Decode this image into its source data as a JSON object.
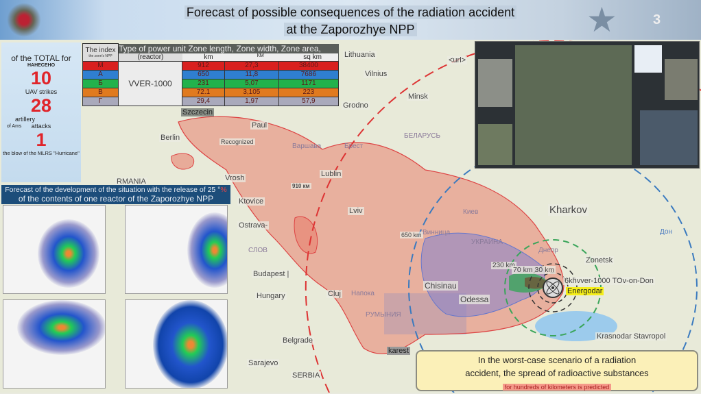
{
  "header": {
    "title_line1": "Forecast of possible consequences of the radiation accident",
    "title_line2": "at the Zaporozhye NPP",
    "page_number": "3"
  },
  "stats": {
    "heading": "of the TOTAL for",
    "sub": "НАНЕСЕНО",
    "uav_count": "10",
    "uav_label": "UAV strikes",
    "artillery_count": "28",
    "artillery_label1": "artillery",
    "artillery_label2": "attacks",
    "artillery_note": "of Ams",
    "mlrs_count": "1",
    "mlrs_label": "the blow of the MLRS \"Hurricane\""
  },
  "zone_table": {
    "headers": {
      "index": "The index",
      "index_sub": "the zone's NPP",
      "type": "Type of power unit Zone length, Zone width, Zone area,",
      "type_sub": "(reactor)",
      "length_unit": "km",
      "width_unit": "КМ",
      "area_unit": "sq km"
    },
    "reactor": "VVER-1000",
    "rows": [
      {
        "index": "М",
        "length": "912",
        "width": "27,3",
        "area": "38400",
        "color": "#d9201f"
      },
      {
        "index": "А",
        "length": "650",
        "width": "11,8",
        "area": "7686",
        "color": "#2f7fd0"
      },
      {
        "index": "Б",
        "length": "231",
        "width": "5,07",
        "area": "1171",
        "color": "#22b24c"
      },
      {
        "index": "В",
        "length": "72.1",
        "width": "3,105",
        "area": "223",
        "color": "#e07a1f"
      },
      {
        "index": "Г",
        "length": "29,4",
        "width": "1,97",
        "area": "57,9",
        "color": "#a9a9bb"
      }
    ]
  },
  "forecast": {
    "line1": "Forecast of the development of the situation with the release of 25 °",
    "line1_mark": "%",
    "line2": "of the contents of one reactor of the Zaporozhye NPP"
  },
  "map_labels": {
    "lithuania": "Lithuania",
    "url": "<url>",
    "vilnius": "Vilnius",
    "minsk": "Minsk",
    "grodno": "Grodno",
    "belarus": "БЕЛАРУСЬ",
    "paul": "Paul",
    "warsaw": "Варшава",
    "brest": "Брест",
    "berlin": "Berlin",
    "recognized": "Recognized",
    "szczecin": "Szczecin",
    "vrosh": "Vrosh",
    "dist910": "910 км",
    "lublin": "Lublin",
    "katowice": "Ktovice",
    "ostrava": "Ostrava-",
    "lviv": "Lviv",
    "kiev": "Киев",
    "kharkov": "Kharkov",
    "dist650": "650 km",
    "vinnitsa": "Винница",
    "ukraine": "УКРАИНА",
    "dnepr": "Днепр",
    "donetsk": "Zonetsk",
    "don": "Дон",
    "budapest": "Budapest |",
    "hungary": "Hungary",
    "cluj": "Cluj",
    "napoca": "Напока",
    "romania": "РУМЫНИЯ",
    "chisinau": "Chisinau",
    "odessa": "Odessa",
    "dist230": "230 km",
    "dist70_30": "70 km 30 km",
    "npp_label": "6khvver-1000 TOv-on-Don",
    "energodar": "Energodar",
    "krasnodar": "Krasnodar Stavropol",
    "belgrade": "Belgrade",
    "sarajevo": "Sarajevo",
    "serbia": "SERBIA",
    "bucharest": "karest",
    "germania": "RMANIA",
    "slovakia": "СЛОВ"
  },
  "note": {
    "line1": "In the worst-case scenario of a radiation",
    "line2": "accident, the spread of radioactive substances",
    "line3": "for hundreds of kilometers is predicted"
  },
  "colors": {
    "plume_red": "#e8806e",
    "plume_blue": "#8c86c8",
    "zone_green": "#3aa55a",
    "highlight": "#f5ee1a",
    "header_blue": "#1c4d7a"
  }
}
